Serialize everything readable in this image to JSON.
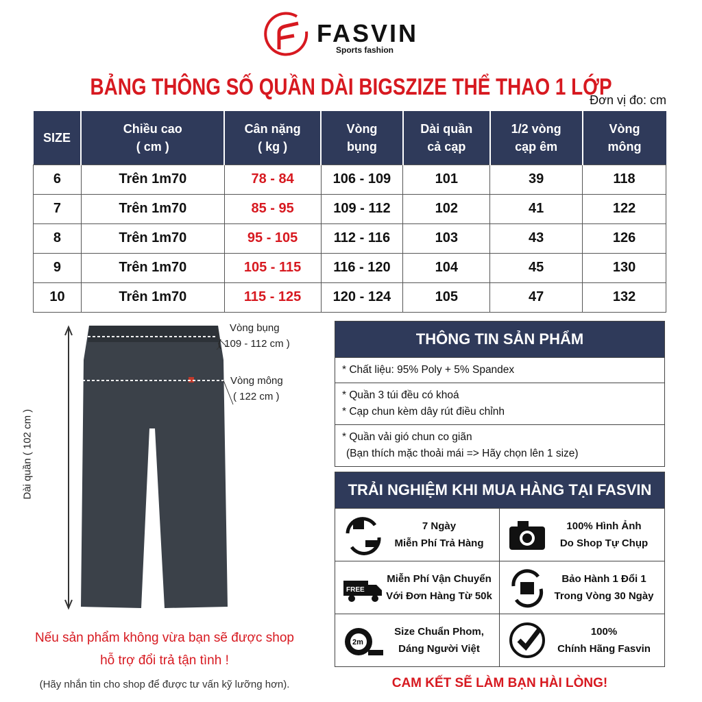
{
  "brand": {
    "name": "FASVIN",
    "tagline": "Sports fashion",
    "accent": "#d71920",
    "navy": "#2f3a5a"
  },
  "title": "BẢNG THÔNG SỐ QUẦN DÀI BIGSZIZE THỂ THAO 1 LỚP",
  "unit": "Đơn vị đo: cm",
  "table": {
    "headers": [
      [
        "SIZE",
        ""
      ],
      [
        "Chiều cao",
        "( cm )"
      ],
      [
        "Cân nặng",
        "( kg )"
      ],
      [
        "Vòng",
        "bụng"
      ],
      [
        "Dài quần",
        "cả cạp"
      ],
      [
        "1/2 vòng",
        "cạp êm"
      ],
      [
        "Vòng",
        "mông"
      ]
    ],
    "rows": [
      [
        "6",
        "Trên 1m70",
        "78 - 84",
        "106 - 109",
        "101",
        "39",
        "118"
      ],
      [
        "7",
        "Trên 1m70",
        "85 - 95",
        "109 - 112",
        "102",
        "41",
        "122"
      ],
      [
        "8",
        "Trên 1m70",
        "95 - 105",
        "112 - 116",
        "103",
        "43",
        "126"
      ],
      [
        "9",
        "Trên 1m70",
        "105 - 115",
        "116 - 120",
        "104",
        "45",
        "130"
      ],
      [
        "10",
        "Trên 1m70",
        "115 - 125",
        "120 - 124",
        "105",
        "47",
        "132"
      ]
    ]
  },
  "diagram": {
    "waist_label": "Vòng bụng",
    "waist_value": "( 109 - 112 cm )",
    "hip_label": "Vòng mông",
    "hip_value": "( 122 cm )",
    "length_label": "Dài quần ( 102 cm )"
  },
  "info": {
    "title": "THÔNG TIN SẢN PHẨM",
    "lines": [
      "* Chất liệu: 95% Poly + 5% Spandex",
      "* Quần 3 túi đều có khoá",
      "* Cạp chun kèm dây rút điều chỉnh",
      "* Quần vải gió chun co giãn",
      "(Bạn thích mặc thoải mái => Hãy chọn lên 1 size)"
    ]
  },
  "experience": {
    "title": "TRẢI NGHIỆM KHI MUA HÀNG TẠI FASVIN",
    "items": [
      {
        "icon": "return-box-icon",
        "l1": "7 Ngày",
        "l2": "Miễn Phí Trả Hàng"
      },
      {
        "icon": "camera-icon",
        "l1": "100% Hình Ảnh",
        "l2": "Do Shop Tự Chụp"
      },
      {
        "icon": "free-truck-icon",
        "l1": "Miễn Phí Vận Chuyển",
        "l2": "Với Đơn Hàng Từ 50k"
      },
      {
        "icon": "warranty-box-icon",
        "l1": "Bảo Hành 1 Đổi 1",
        "l2": "Trong Vòng 30 Ngày"
      },
      {
        "icon": "tape-measure-icon",
        "l1": "Size Chuẩn Phom,",
        "l2": "Dáng Người Việt",
        "badge": "2m"
      },
      {
        "icon": "check-badge-icon",
        "l1": "100%",
        "l2": "Chính Hãng Fasvin"
      }
    ]
  },
  "notes": {
    "l1": "Nếu sản phẩm không vừa bạn sẽ được shop",
    "l2": "hỗ trợ đổi trả tận tình !",
    "l3": "(Hãy nhắn tin cho shop để được tư vấn kỹ lưỡng hơn).",
    "commit": "CAM KẾT SẼ LÀM BẠN HÀI LÒNG!"
  }
}
